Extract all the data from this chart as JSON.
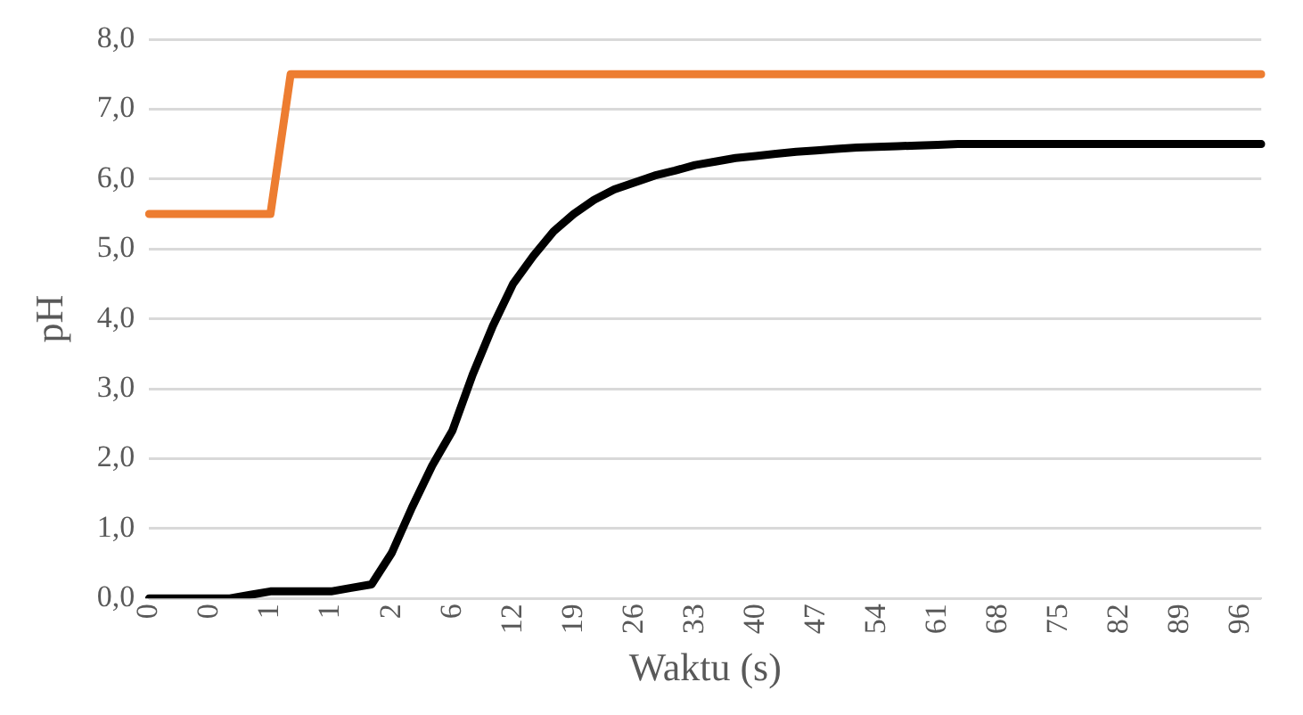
{
  "chart_data": {
    "type": "line",
    "xlabel": "Waktu (s)",
    "ylabel": "pH",
    "categories": [
      "0",
      null,
      null,
      "0",
      null,
      null,
      "1",
      null,
      null,
      "1",
      null,
      null,
      "2",
      null,
      null,
      "6",
      null,
      null,
      "12",
      null,
      null,
      "19",
      null,
      null,
      "26",
      null,
      null,
      "33",
      null,
      null,
      "40",
      null,
      null,
      "47",
      null,
      null,
      "54",
      null,
      null,
      "61",
      null,
      null,
      "68",
      null,
      null,
      "75",
      null,
      null,
      "82",
      null,
      null,
      "89",
      null,
      null,
      "96",
      null
    ],
    "series": [
      {
        "color": "#ed7d31",
        "values": [
          5.5,
          5.5,
          5.5,
          5.5,
          5.5,
          5.5,
          5.5,
          7.5,
          7.5,
          7.5,
          7.5,
          7.5,
          7.5,
          7.5,
          7.5,
          7.5,
          7.5,
          7.5,
          7.5,
          7.5,
          7.5,
          7.5,
          7.5,
          7.5,
          7.5,
          7.5,
          7.5,
          7.5,
          7.5,
          7.5,
          7.5,
          7.5,
          7.5,
          7.5,
          7.5,
          7.5,
          7.5,
          7.5,
          7.5,
          7.5,
          7.5,
          7.5,
          7.5,
          7.5,
          7.5,
          7.5,
          7.5,
          7.5,
          7.5,
          7.5,
          7.5,
          7.5,
          7.5,
          7.5,
          7.5,
          7.5
        ]
      },
      {
        "color": "#000000",
        "values": [
          0,
          0,
          0,
          0,
          0,
          0.05,
          0.1,
          0.1,
          0.1,
          0.1,
          0.15,
          0.2,
          0.65,
          1.3,
          1.9,
          2.4,
          3.2,
          3.9,
          4.5,
          4.9,
          5.25,
          5.5,
          5.7,
          5.85,
          5.95,
          6.05,
          6.12,
          6.2,
          6.25,
          6.3,
          6.33,
          6.36,
          6.39,
          6.41,
          6.43,
          6.45,
          6.46,
          6.47,
          6.48,
          6.49,
          6.5,
          6.5,
          6.5,
          6.5,
          6.5,
          6.5,
          6.5,
          6.5,
          6.5,
          6.5,
          6.5,
          6.5,
          6.5,
          6.5,
          6.5,
          6.5
        ]
      }
    ],
    "ylim": [
      0,
      8
    ],
    "yticks": [
      {
        "value": 0,
        "label": "0,0"
      },
      {
        "value": 1,
        "label": "1,0"
      },
      {
        "value": 2,
        "label": "2,0"
      },
      {
        "value": 3,
        "label": "3,0"
      },
      {
        "value": 4,
        "label": "4,0"
      },
      {
        "value": 5,
        "label": "5,0"
      },
      {
        "value": 6,
        "label": "6,0"
      },
      {
        "value": 7,
        "label": "7,0"
      },
      {
        "value": 8,
        "label": "8,0"
      }
    ],
    "grid": "y",
    "legend": false,
    "marker": "none",
    "line_style": "solid"
  }
}
